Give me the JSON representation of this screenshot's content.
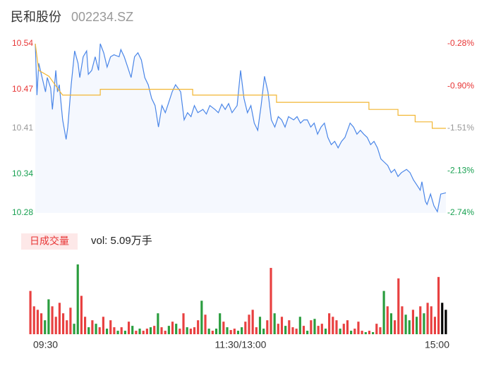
{
  "chart_data": {
    "type": "intraday",
    "title": "民和股份",
    "subtitle": "002234.SZ",
    "xlim": [
      0,
      240
    ],
    "xticks": [
      {
        "value": 0,
        "label": "09:30"
      },
      {
        "value": 120,
        "label": "11:30/13:00"
      },
      {
        "value": 240,
        "label": "15:00"
      }
    ],
    "ylim": [
      10.28,
      10.54
    ],
    "yticks": [
      {
        "value": 10.54,
        "label": "10.54"
      },
      10.47,
      10.41,
      10.34,
      {
        "value": 10.28,
        "label": "10.28"
      }
    ],
    "y2lim": [
      -2.74,
      -0.28
    ],
    "y2ticks": [
      {
        "value": -0.28,
        "label": "-0.28%"
      },
      {
        "value": -0.9,
        "label": "-0.90%"
      },
      {
        "value": -1.51,
        "label": "-1.51%"
      },
      {
        "value": -2.13,
        "label": "-2.13%"
      },
      {
        "value": -2.74,
        "label": "-2.74%"
      }
    ],
    "ytick_colors": [
      "#e83535",
      "#e83535",
      "#999999",
      "#17a050",
      "#17a050"
    ],
    "series": [
      {
        "color": "#4a86e8",
        "x": [
          0,
          1,
          2,
          4,
          6,
          7,
          9,
          10,
          12,
          13,
          14,
          16,
          18,
          19,
          21,
          23,
          25,
          26,
          28,
          30,
          31,
          33,
          35,
          37,
          38,
          40,
          42,
          44,
          46,
          49,
          50,
          52,
          54,
          56,
          58,
          60,
          62,
          64,
          66,
          68,
          70,
          72,
          74,
          76,
          78,
          80,
          82,
          85,
          87,
          89,
          91,
          93,
          95,
          98,
          100,
          102,
          105,
          107,
          109,
          111,
          113,
          115,
          118,
          120,
          122,
          124,
          126,
          128,
          130,
          132,
          134,
          136,
          138,
          140,
          142,
          144,
          146,
          148,
          151,
          153,
          155,
          157,
          159,
          161,
          163,
          165,
          167,
          169,
          171,
          173,
          175,
          177,
          179,
          181,
          184,
          186,
          188,
          190,
          192,
          194,
          196,
          198,
          200,
          202,
          204,
          206,
          208,
          210,
          212,
          214,
          217,
          219,
          221,
          223,
          225,
          226,
          228,
          229,
          231,
          233,
          235,
          237,
          240
        ],
        "values": [
          10.54,
          10.461,
          10.51,
          10.488,
          10.466,
          10.488,
          10.472,
          10.439,
          10.499,
          10.466,
          10.477,
          10.423,
          10.393,
          10.412,
          10.477,
          10.529,
          10.51,
          10.488,
          10.52,
          10.529,
          10.493,
          10.499,
          10.52,
          10.499,
          10.54,
          10.526,
          10.504,
          10.52,
          10.523,
          10.52,
          10.531,
          10.52,
          10.504,
          10.488,
          10.52,
          10.526,
          10.515,
          10.488,
          10.477,
          10.456,
          10.445,
          10.412,
          10.445,
          10.434,
          10.45,
          10.466,
          10.477,
          10.466,
          10.423,
          10.434,
          10.428,
          10.445,
          10.434,
          10.439,
          10.432,
          10.445,
          10.439,
          10.434,
          10.447,
          10.439,
          10.448,
          10.434,
          10.445,
          10.499,
          10.456,
          10.434,
          10.445,
          10.418,
          10.407,
          10.445,
          10.49,
          10.466,
          10.423,
          10.412,
          10.428,
          10.423,
          10.412,
          10.428,
          10.423,
          10.428,
          10.418,
          10.423,
          10.423,
          10.412,
          10.418,
          10.401,
          10.412,
          10.418,
          10.396,
          10.385,
          10.39,
          10.38,
          10.39,
          10.396,
          10.418,
          10.412,
          10.401,
          10.407,
          10.401,
          10.396,
          10.385,
          10.39,
          10.38,
          10.363,
          10.358,
          10.353,
          10.342,
          10.347,
          10.336,
          10.342,
          10.347,
          10.342,
          10.331,
          10.323,
          10.315,
          10.328,
          10.298,
          10.293,
          10.309,
          10.291,
          10.282,
          10.309,
          10.311
        ]
      },
      {
        "color": "#f2b632",
        "x": [
          0,
          2,
          8,
          14,
          16,
          38,
          38,
          92,
          92,
          141,
          141,
          195,
          195,
          212,
          212,
          222,
          222,
          232,
          232,
          240
        ],
        "values": [
          10.54,
          10.499,
          10.49,
          10.468,
          10.461,
          10.461,
          10.47,
          10.47,
          10.461,
          10.461,
          10.45,
          10.45,
          10.439,
          10.439,
          10.43,
          10.43,
          10.42,
          10.42,
          10.41,
          10.41
        ]
      }
    ],
    "volume_label": "日成交量",
    "volume_text": "vol: 5.09万手",
    "volume": {
      "values": [
        62,
        40,
        35,
        30,
        20,
        50,
        40,
        25,
        45,
        30,
        20,
        38,
        15,
        100,
        55,
        25,
        10,
        20,
        15,
        10,
        25,
        8,
        20,
        10,
        5,
        10,
        5,
        18,
        12,
        5,
        8,
        5,
        8,
        10,
        12,
        30,
        10,
        5,
        12,
        18,
        15,
        8,
        30,
        10,
        8,
        10,
        20,
        48,
        28,
        8,
        5,
        8,
        30,
        18,
        10,
        6,
        8,
        5,
        10,
        18,
        28,
        35,
        10,
        25,
        8,
        20,
        95,
        30,
        15,
        25,
        12,
        20,
        10,
        8,
        25,
        12,
        5,
        20,
        22,
        12,
        15,
        8,
        30,
        25,
        20,
        8,
        15,
        20,
        5,
        8,
        18,
        5,
        3,
        5,
        3,
        15,
        10,
        62,
        40,
        30,
        20,
        80,
        40,
        28,
        20,
        35,
        25,
        40,
        30,
        45,
        40,
        25,
        82,
        45,
        35
      ],
      "colors": "rrrrggrrrrrrggrrgrgrrgrrgrgrgrgrrgrgrrgrgrrgrrrgrgrggrgrrggrrrrggrrgrrgrrrgrgrgrrgrrrgrrgrrrgrgrrgrgrrrggrgrgrrrr"
    }
  }
}
